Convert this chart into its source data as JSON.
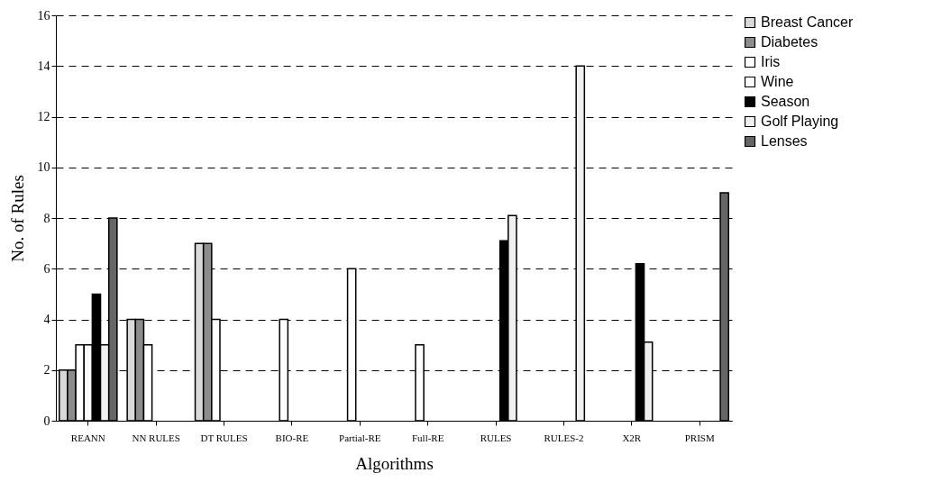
{
  "chart_data": {
    "type": "bar",
    "xlabel": "Algorithms",
    "ylabel": "No. of Rules",
    "categories": [
      "REANN",
      "NN RULES",
      "DT RULES",
      "BIO-RE",
      "Partial-RE",
      "Full-RE",
      "RULES",
      "RULES-2",
      "X2R",
      "PRISM"
    ],
    "series": [
      {
        "name": "Breast Cancer",
        "color": "#d9d9d9",
        "values": [
          2,
          4,
          7,
          null,
          null,
          null,
          null,
          null,
          null,
          null
        ]
      },
      {
        "name": "Diabetes",
        "color": "#8c8c8c",
        "values": [
          2,
          4,
          7,
          null,
          null,
          null,
          null,
          null,
          null,
          null
        ]
      },
      {
        "name": "Iris",
        "color": "#ffffff",
        "values": [
          3,
          3,
          4,
          4,
          6,
          3,
          null,
          null,
          null,
          null
        ]
      },
      {
        "name": "Wine",
        "color": "#fafafa",
        "values": [
          3,
          null,
          null,
          null,
          null,
          null,
          null,
          null,
          null,
          null
        ]
      },
      {
        "name": "Season",
        "color": "#000000",
        "values": [
          5,
          null,
          null,
          null,
          null,
          null,
          7.1,
          null,
          6.2,
          null
        ]
      },
      {
        "name": "Golf Playing",
        "color": "#f0f0f0",
        "values": [
          3,
          null,
          null,
          null,
          null,
          null,
          8.1,
          14,
          3.1,
          null
        ]
      },
      {
        "name": "Lenses",
        "color": "#666666",
        "values": [
          8,
          null,
          null,
          null,
          null,
          null,
          null,
          null,
          null,
          9
        ]
      }
    ],
    "ylim": [
      0,
      16
    ],
    "yticks": [
      0,
      2,
      4,
      6,
      8,
      10,
      12,
      14,
      16
    ],
    "grid": "y",
    "legend": "right"
  }
}
